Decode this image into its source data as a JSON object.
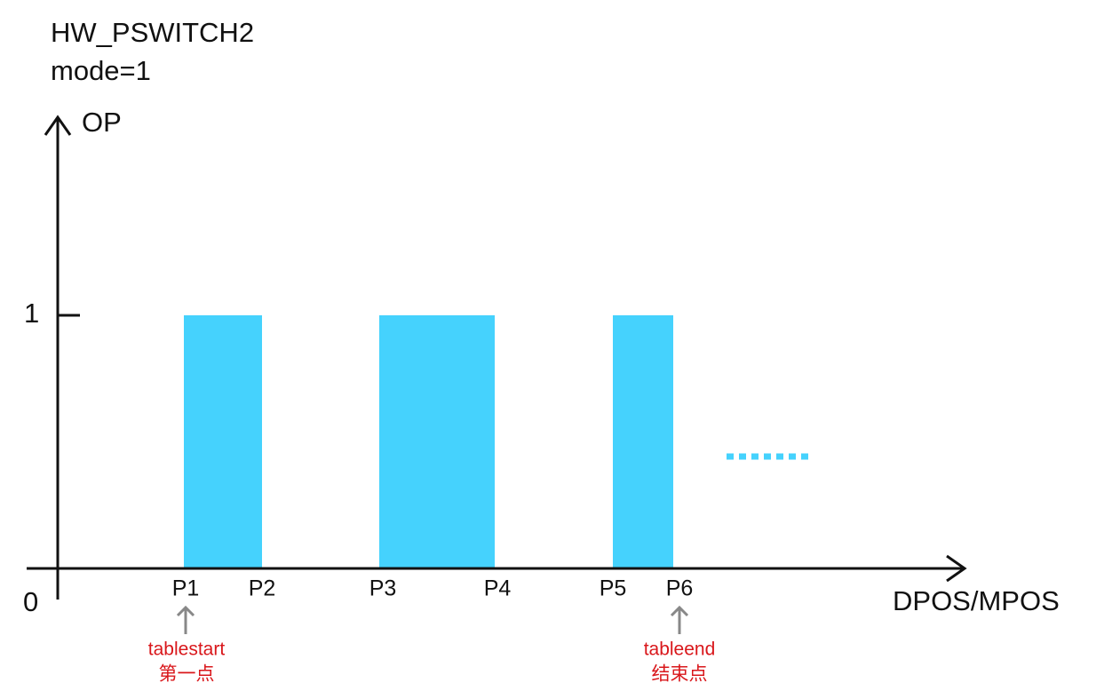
{
  "title": "HW_PSWITCH2",
  "subtitle": "mode=1",
  "y_axis": {
    "label": "OP",
    "high": "1",
    "origin": "0"
  },
  "x_axis": {
    "label": "DPOS/MPOS"
  },
  "points": [
    "P1",
    "P2",
    "P3",
    "P4",
    "P5",
    "P6"
  ],
  "annotations": [
    {
      "label": "tablestart",
      "sublabel": "第一点"
    },
    {
      "label": "tableend",
      "sublabel": "结束点"
    }
  ]
}
